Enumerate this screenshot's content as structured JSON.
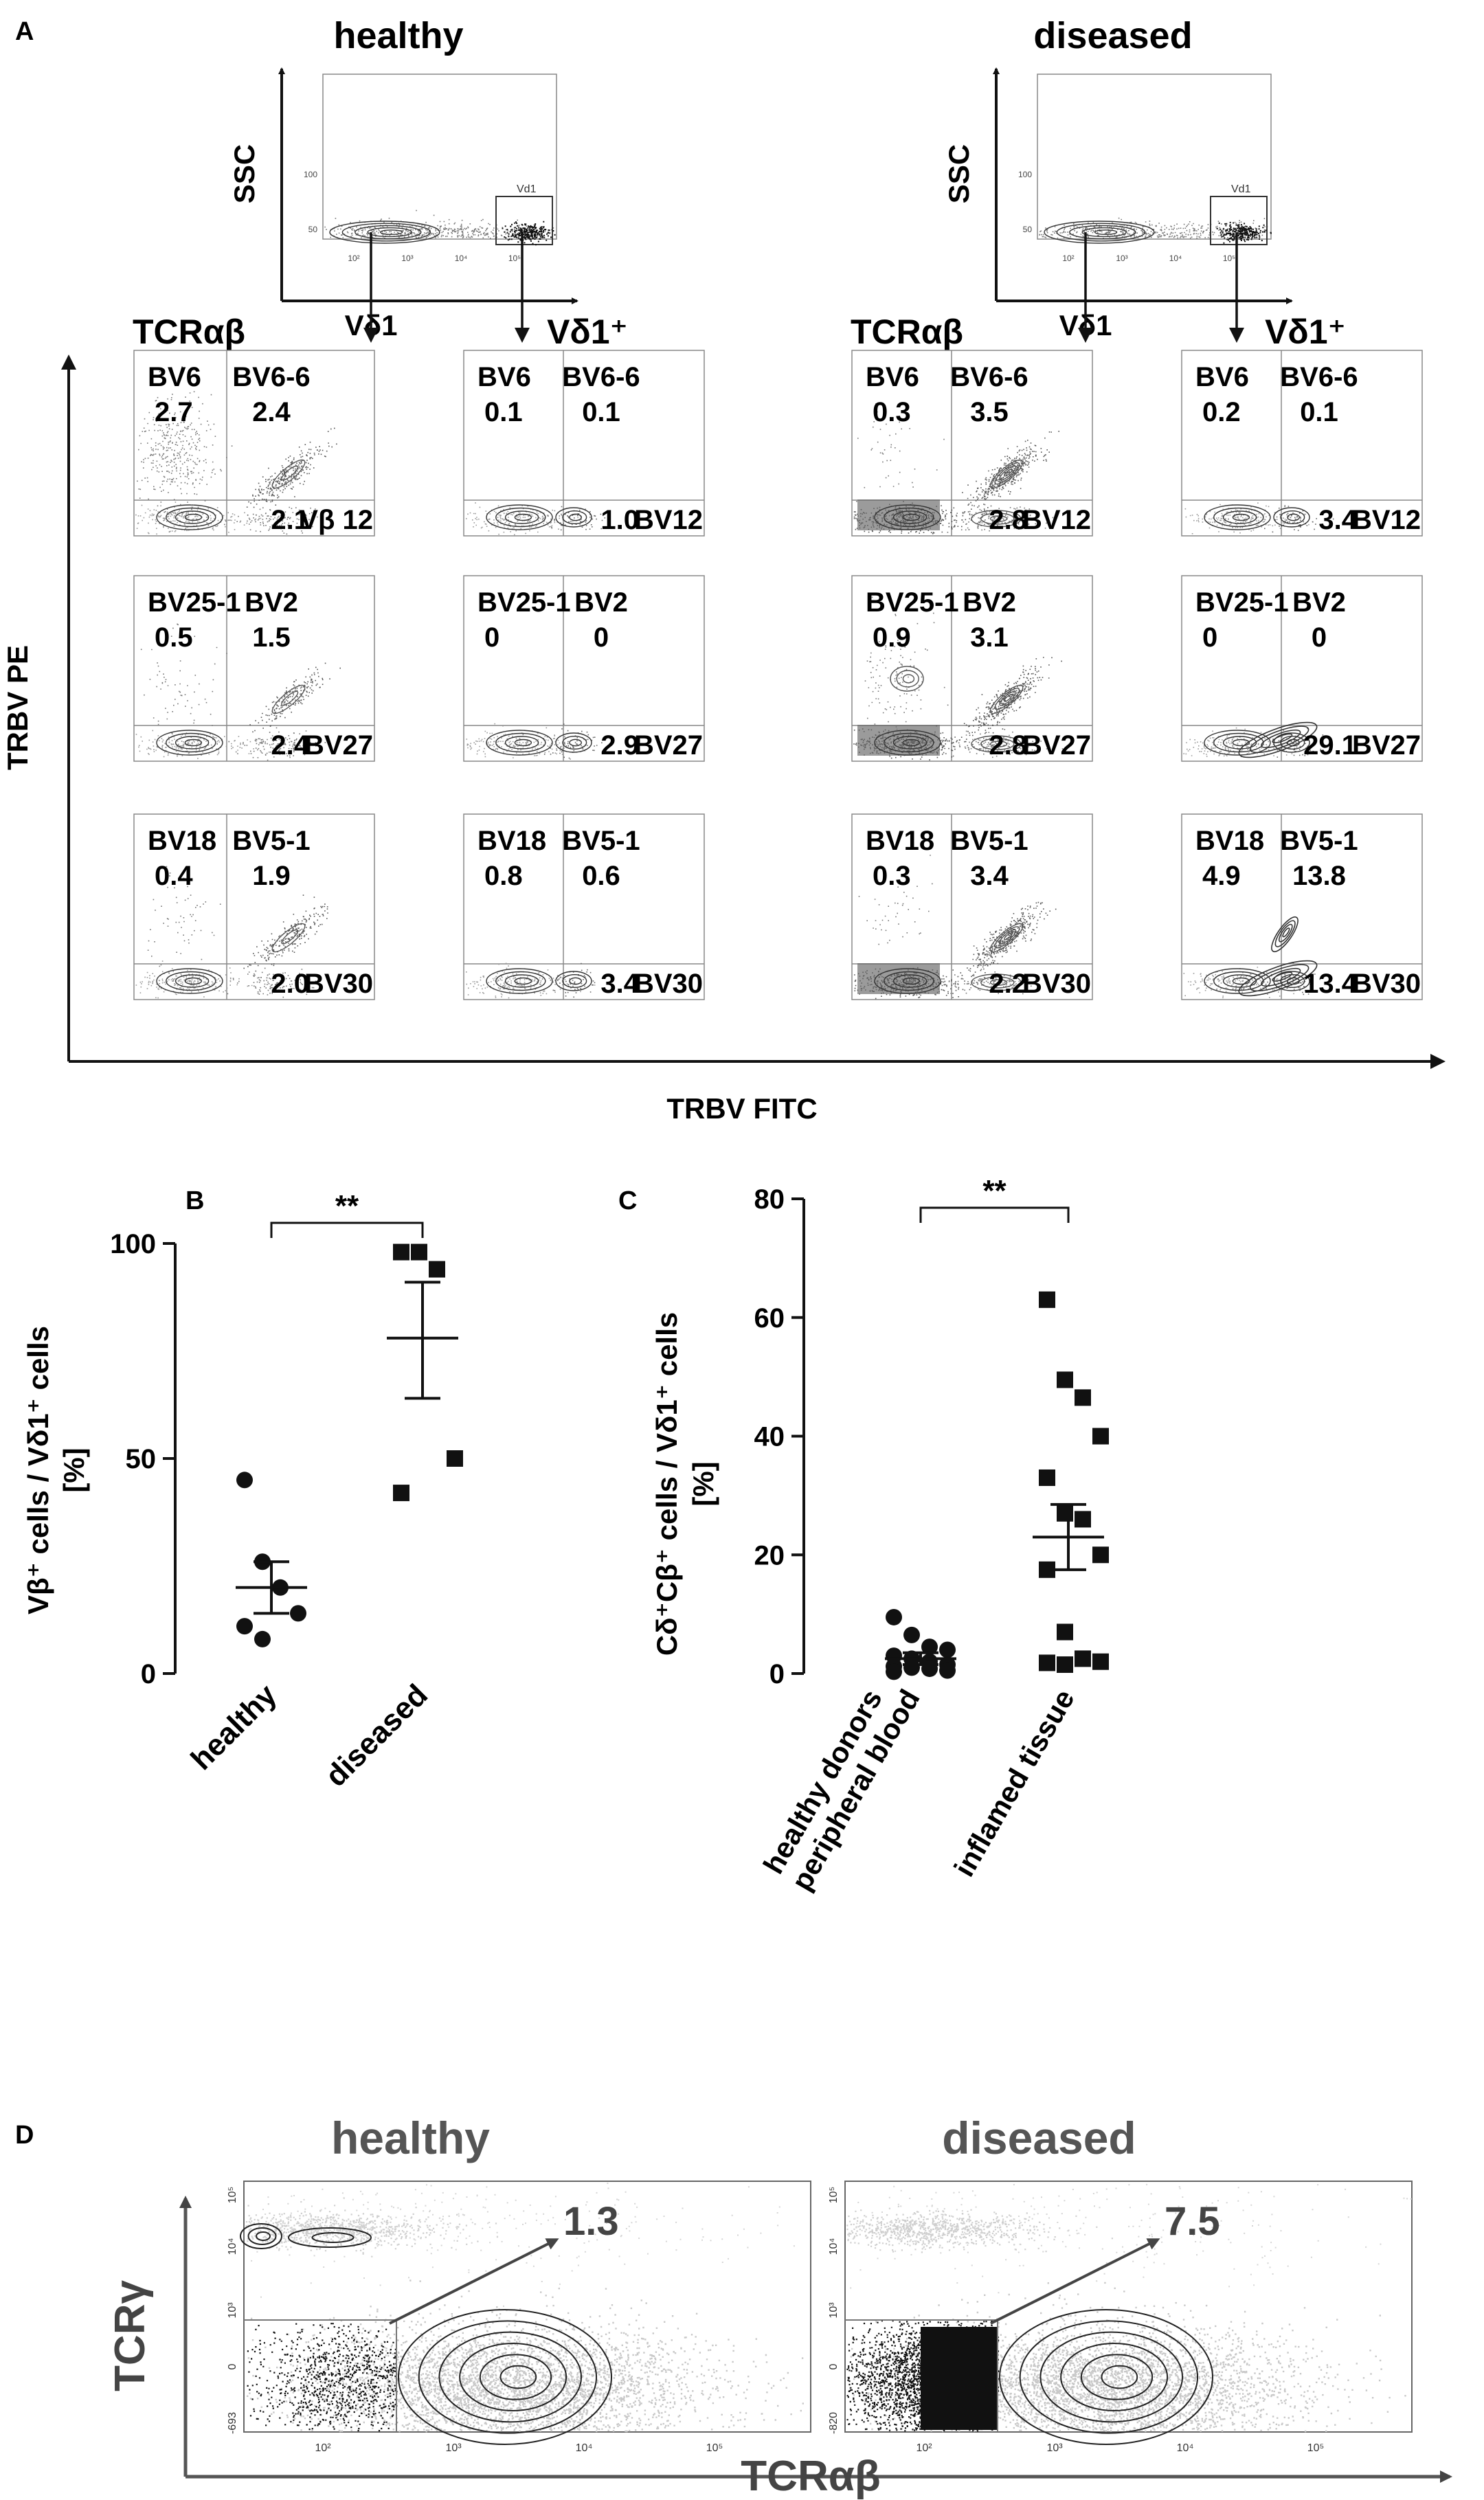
{
  "panel_a": {
    "label": "A",
    "groups": [
      {
        "title": "healthy",
        "scatter": {
          "y_label": "SSC",
          "x_label": "Vδ1",
          "gate_label": "Vd1",
          "x_ticks": [
            "10²",
            "10³",
            "10⁴",
            "10⁵"
          ],
          "y_ticks": [
            "100",
            "50"
          ]
        },
        "col_titles": [
          "TCRαβ",
          "Vδ1⁺"
        ],
        "plots": [
          [
            {
              "ul": "BV6",
              "ul_val": "2.7",
              "ur": "BV6-6",
              "ur_val": "2.4",
              "lr_val": "2.1",
              "lr": "Vβ 12"
            },
            {
              "ul": "BV6",
              "ul_val": "0.1",
              "ur": "BV6-6",
              "ur_val": "0.1",
              "lr_val": "1.0",
              "lr": "BV12"
            }
          ],
          [
            {
              "ul": "BV25-1",
              "ul_val": "0.5",
              "ur": "BV2",
              "ur_val": "1.5",
              "lr_val": "2.4",
              "lr": "BV27"
            },
            {
              "ul": "BV25-1",
              "ul_val": "0",
              "ur": "BV2",
              "ur_val": "0",
              "lr_val": "2.9",
              "lr": "BV27"
            }
          ],
          [
            {
              "ul": "BV18",
              "ul_val": "0.4",
              "ur": "BV5-1",
              "ur_val": "1.9",
              "lr_val": "2.0",
              "lr": "BV30"
            },
            {
              "ul": "BV18",
              "ul_val": "0.8",
              "ur": "BV5-1",
              "ur_val": "0.6",
              "lr_val": "3.4",
              "lr": "BV30"
            }
          ]
        ]
      },
      {
        "title": "diseased",
        "scatter": {
          "y_label": "SSC",
          "x_label": "Vδ1",
          "gate_label": "Vd1",
          "x_ticks": [
            "10²",
            "10³",
            "10⁴",
            "10⁵"
          ],
          "y_ticks": [
            "100",
            "50"
          ]
        },
        "col_titles": [
          "TCRαβ",
          "Vδ1⁺"
        ],
        "plots": [
          [
            {
              "ul": "BV6",
              "ul_val": "0.3",
              "ur": "BV6-6",
              "ur_val": "3.5",
              "lr_val": "2.8",
              "lr": "BV12"
            },
            {
              "ul": "BV6",
              "ul_val": "0.2",
              "ur": "BV6-6",
              "ur_val": "0.1",
              "lr_val": "3.4",
              "lr": "BV12"
            }
          ],
          [
            {
              "ul": "BV25-1",
              "ul_val": "0.9",
              "ur": "BV2",
              "ur_val": "3.1",
              "lr_val": "2.8",
              "lr": "BV27"
            },
            {
              "ul": "BV25-1",
              "ul_val": "0",
              "ur": "BV2",
              "ur_val": "0",
              "lr_val": "29.1",
              "lr": "BV27"
            }
          ],
          [
            {
              "ul": "BV18",
              "ul_val": "0.3",
              "ur": "BV5-1",
              "ur_val": "3.4",
              "lr_val": "2.2",
              "lr": "BV30"
            },
            {
              "ul": "BV18",
              "ul_val": "4.9",
              "ur": "BV5-1",
              "ur_val": "13.8",
              "lr_val": "13.4",
              "lr": "BV30"
            }
          ]
        ]
      }
    ],
    "y_axis_label": "TRBV PE",
    "x_axis_label": "TRBV FITC"
  },
  "chart_data": [
    {
      "panel": "B",
      "type": "scatter",
      "ylabel": "Vβ⁺ cells / Vδ1⁺ cells [%]",
      "ylim": [
        0,
        100
      ],
      "y_ticks": [
        0,
        50,
        100
      ],
      "categories": [
        "healthy",
        "diseased"
      ],
      "series": [
        {
          "name": "healthy",
          "marker": "circle",
          "values": [
            45,
            26,
            20,
            14,
            11,
            8
          ],
          "mean": 20,
          "sem_low": 14,
          "sem_high": 26
        },
        {
          "name": "diseased",
          "marker": "square",
          "values": [
            98,
            98,
            94,
            50,
            42
          ],
          "mean": 78,
          "sem_low": 64,
          "sem_high": 91
        }
      ],
      "significance": "**"
    },
    {
      "panel": "C",
      "type": "scatter",
      "ylabel": "Cδ⁺Cβ⁺ cells / Vδ1⁺ cells [%]",
      "ylim": [
        0,
        80
      ],
      "y_ticks": [
        0,
        20,
        40,
        60,
        80
      ],
      "categories": [
        "healthy donors peripheral blood",
        "inflamed tissue"
      ],
      "series": [
        {
          "name": "healthy donors peripheral blood",
          "marker": "circle",
          "values": [
            9.5,
            6.5,
            4.5,
            4,
            3,
            2.5,
            2,
            1.5,
            1.2,
            1,
            0.8,
            0.5,
            0.3
          ],
          "mean": 2.5,
          "sem_low": 1.5,
          "sem_high": 3.5
        },
        {
          "name": "inflamed tissue",
          "marker": "square",
          "values": [
            63,
            49.5,
            46.5,
            40,
            33,
            27,
            26,
            20,
            17.5,
            7,
            2.5,
            2,
            1.8,
            1.5
          ],
          "mean": 23,
          "sem_low": 17.5,
          "sem_high": 28.5
        }
      ],
      "significance": "**"
    }
  ],
  "panel_b_text": {
    "label": "B",
    "ylabel_main": "Vβ⁺ cells / Vδ1⁺ cells",
    "ylabel_unit": "[%]",
    "sig": "**",
    "ticks": [
      "0",
      "50",
      "100"
    ],
    "cat1": "healthy",
    "cat2": "diseased"
  },
  "panel_c_text": {
    "label": "C",
    "ylabel_main": "Cδ⁺Cβ⁺ cells / Vδ1⁺ cells",
    "ylabel_unit": "[%]",
    "sig": "**",
    "ticks": [
      "0",
      "20",
      "40",
      "60",
      "80"
    ],
    "cat1_line1": "healthy donors",
    "cat1_line2": "peripheral blood",
    "cat2": "inflamed tissue"
  },
  "panel_d": {
    "label": "D",
    "y_axis_label": "TCRγ",
    "x_axis_label": "TCRαβ",
    "plots": [
      {
        "title": "healthy",
        "value": "1.3",
        "x_ticks": [
          "10²",
          "10³",
          "10⁴",
          "10⁵"
        ],
        "y_ticks": [
          "10⁵",
          "10⁴",
          "10³",
          "0",
          "-693"
        ]
      },
      {
        "title": "diseased",
        "value": "7.5",
        "x_ticks": [
          "10²",
          "10³",
          "10⁴",
          "10⁵"
        ],
        "y_ticks": [
          "10⁵",
          "10⁴",
          "10³",
          "0",
          "-820"
        ]
      }
    ]
  }
}
